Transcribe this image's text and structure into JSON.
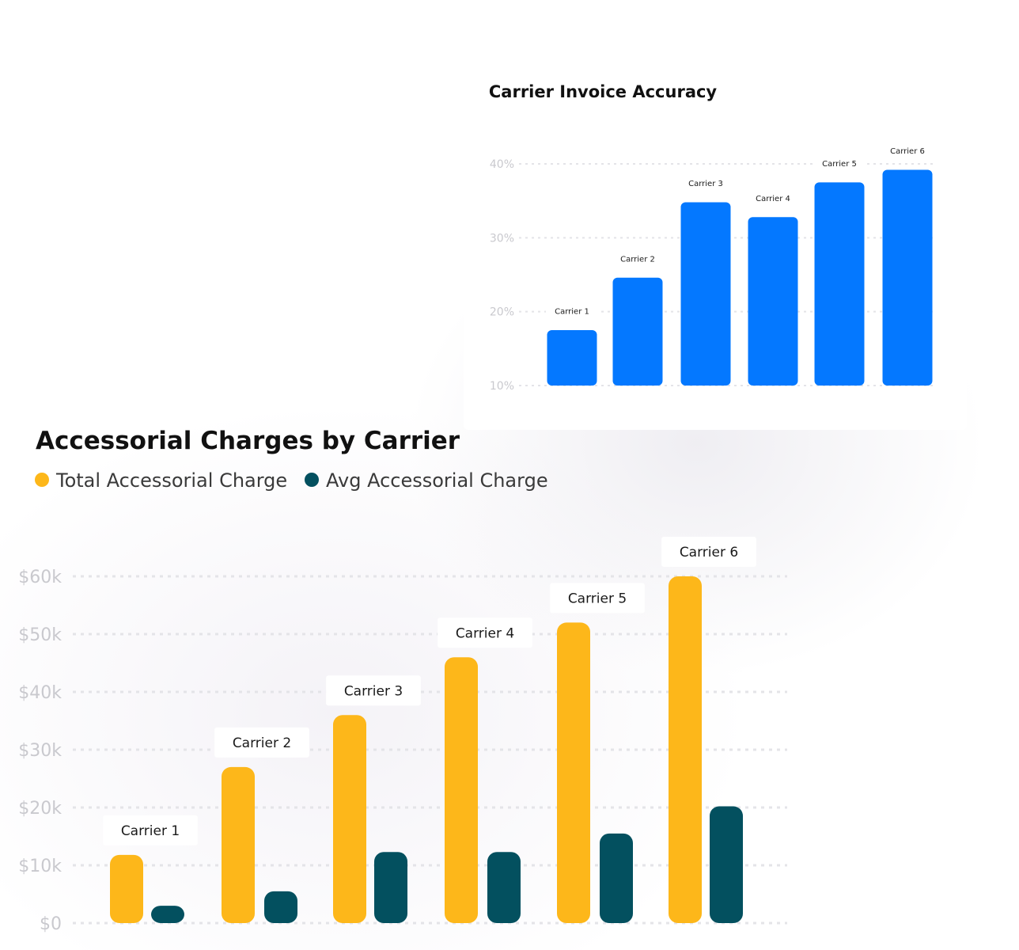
{
  "colors": {
    "accuracy_bar": "#0478FF",
    "total_charge": "#FDB71A",
    "avg_charge": "#03505F",
    "tick_text": "#C9C9CE",
    "grid": "#E4E4E8",
    "title": "#111111",
    "legend_text": "#3A3A3A"
  },
  "chart_data": [
    {
      "type": "bar",
      "title": "Carrier Invoice Accuracy",
      "categories": [
        "Carrier 1",
        "Carrier 2",
        "Carrier 3",
        "Carrier 4",
        "Carrier 5",
        "Carrier 6"
      ],
      "values": [
        17.5,
        24.6,
        34.8,
        32.8,
        37.5,
        39.2
      ],
      "ylim": [
        10,
        40
      ],
      "yticks": [
        10,
        20,
        30,
        40
      ],
      "ytick_labels": [
        "10%",
        "20%",
        "30%",
        "40%"
      ],
      "grid": true,
      "data_labels": [
        "Carrier 1",
        "Carrier 2",
        "Carrier 3",
        "Carrier 4",
        "Carrier 5",
        "Carrier 6"
      ]
    },
    {
      "type": "bar",
      "title": "Accessorial Charges by Carrier",
      "categories": [
        "Carrier 1",
        "Carrier 2",
        "Carrier 3",
        "Carrier 4",
        "Carrier 5",
        "Carrier 6"
      ],
      "series": [
        {
          "name": "Total Accessorial Charge",
          "values": [
            11800,
            27000,
            36000,
            46000,
            52000,
            60000
          ]
        },
        {
          "name": "Avg Accessorial Charge",
          "values": [
            3000,
            5500,
            12300,
            12300,
            15500,
            20200
          ]
        }
      ],
      "ylim": [
        0,
        60000
      ],
      "yticks": [
        0,
        10000,
        20000,
        30000,
        40000,
        50000,
        60000
      ],
      "ytick_labels": [
        "$0",
        "$10k",
        "$20k",
        "$30k",
        "$40k",
        "$50k",
        "$60k"
      ],
      "grid": true,
      "legend": "top-left",
      "data_labels": [
        "Carrier 1",
        "Carrier 2",
        "Carrier 3",
        "Carrier 4",
        "Carrier 5",
        "Carrier 6"
      ]
    }
  ]
}
